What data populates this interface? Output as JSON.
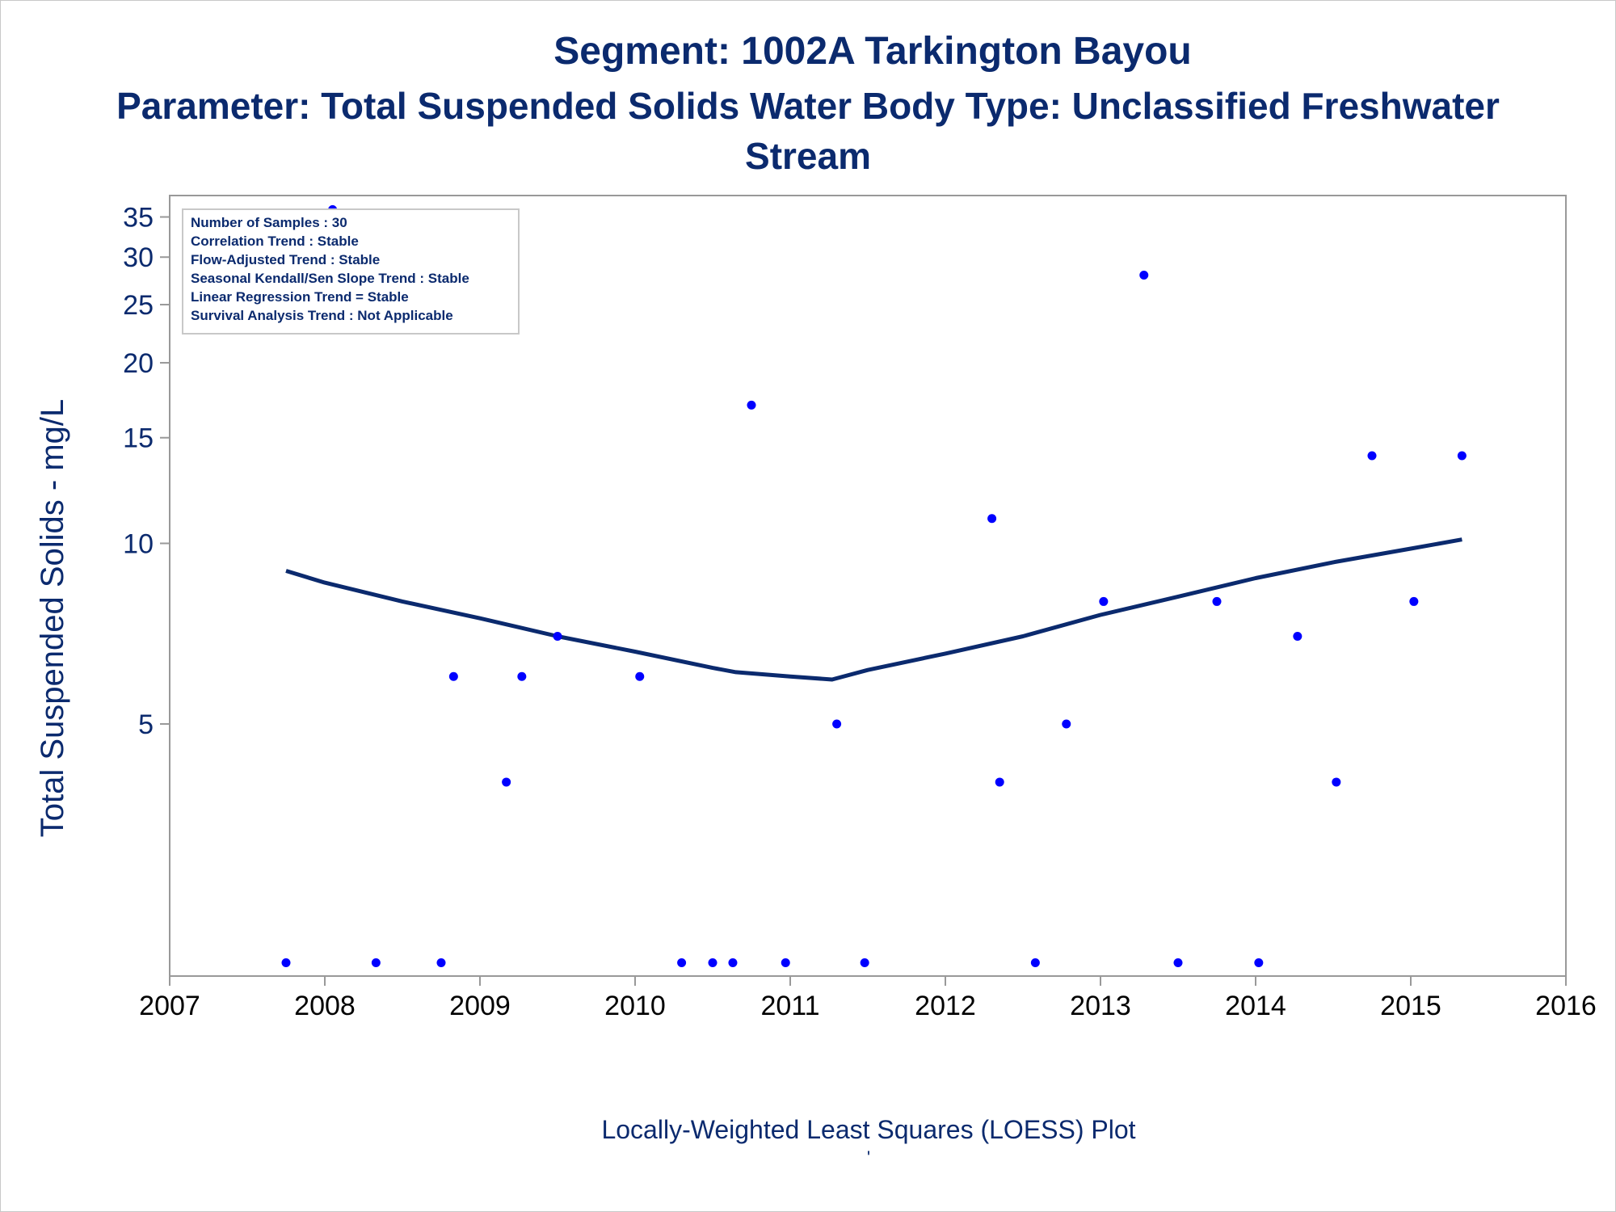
{
  "titles": {
    "line1": "Segment: 1002A  Tarkington Bayou",
    "line2": "Parameter: Total Suspended Solids   Water Body Type: Unclassified Freshwater",
    "line3": "Stream"
  },
  "footnote": "Locally-Weighted Least Squares (LOESS) Plot",
  "footnote_tick": "'",
  "colors": {
    "text": "#0b2a6e",
    "point": "#0000ff",
    "line": "#0b2a6e",
    "frame": "#999999"
  },
  "chart_data": {
    "type": "scatter",
    "ylabel": "Total Suspended Solids - mg/L",
    "xlabel": "",
    "xlim": [
      2007,
      2016
    ],
    "x_ticks": [
      "2007",
      "2008",
      "2009",
      "2010",
      "2011",
      "2012",
      "2013",
      "2014",
      "2015",
      "2016"
    ],
    "y_scale": "log",
    "ylim": [
      1.9,
      38
    ],
    "y_ticks": [
      5,
      10,
      15,
      20,
      25,
      30,
      35
    ],
    "grid": false,
    "stats_box": [
      "Number of Samples : 30",
      "Correlation Trend : Stable",
      "Flow-Adjusted Trend : Stable",
      "Seasonal Kendall/Sen Slope Trend : Stable",
      "Linear Regression Trend = Stable",
      "Survival Analysis Trend : Not Applicable"
    ],
    "series": [
      {
        "type": "scatter",
        "points": [
          [
            2007.75,
            2
          ],
          [
            2008.05,
            36
          ],
          [
            2008.33,
            2
          ],
          [
            2008.75,
            2
          ],
          [
            2008.83,
            6
          ],
          [
            2009.17,
            4
          ],
          [
            2009.27,
            6
          ],
          [
            2009.5,
            7
          ],
          [
            2010.03,
            6
          ],
          [
            2010.3,
            2
          ],
          [
            2010.5,
            2
          ],
          [
            2010.63,
            2
          ],
          [
            2010.75,
            17
          ],
          [
            2010.97,
            2
          ],
          [
            2011.3,
            5
          ],
          [
            2011.48,
            2
          ],
          [
            2012.3,
            11
          ],
          [
            2012.35,
            4
          ],
          [
            2012.58,
            2
          ],
          [
            2012.78,
            5
          ],
          [
            2013.02,
            8
          ],
          [
            2013.28,
            28
          ],
          [
            2013.5,
            2
          ],
          [
            2013.75,
            8
          ],
          [
            2014.02,
            2
          ],
          [
            2014.27,
            7
          ],
          [
            2014.52,
            4
          ],
          [
            2014.75,
            14
          ],
          [
            2015.02,
            8
          ],
          [
            2015.33,
            14
          ]
        ]
      },
      {
        "type": "line",
        "points": [
          [
            2007.75,
            9.0
          ],
          [
            2008.0,
            8.6
          ],
          [
            2008.5,
            8.0
          ],
          [
            2009.0,
            7.5
          ],
          [
            2009.5,
            7.0
          ],
          [
            2010.0,
            6.6
          ],
          [
            2010.5,
            6.2
          ],
          [
            2010.65,
            6.1
          ],
          [
            2011.0,
            6.0
          ],
          [
            2011.27,
            5.93
          ],
          [
            2011.5,
            6.15
          ],
          [
            2012.0,
            6.55
          ],
          [
            2012.5,
            7.0
          ],
          [
            2013.0,
            7.6
          ],
          [
            2013.5,
            8.15
          ],
          [
            2014.0,
            8.75
          ],
          [
            2014.5,
            9.3
          ],
          [
            2015.0,
            9.8
          ],
          [
            2015.33,
            10.15
          ]
        ]
      }
    ]
  }
}
